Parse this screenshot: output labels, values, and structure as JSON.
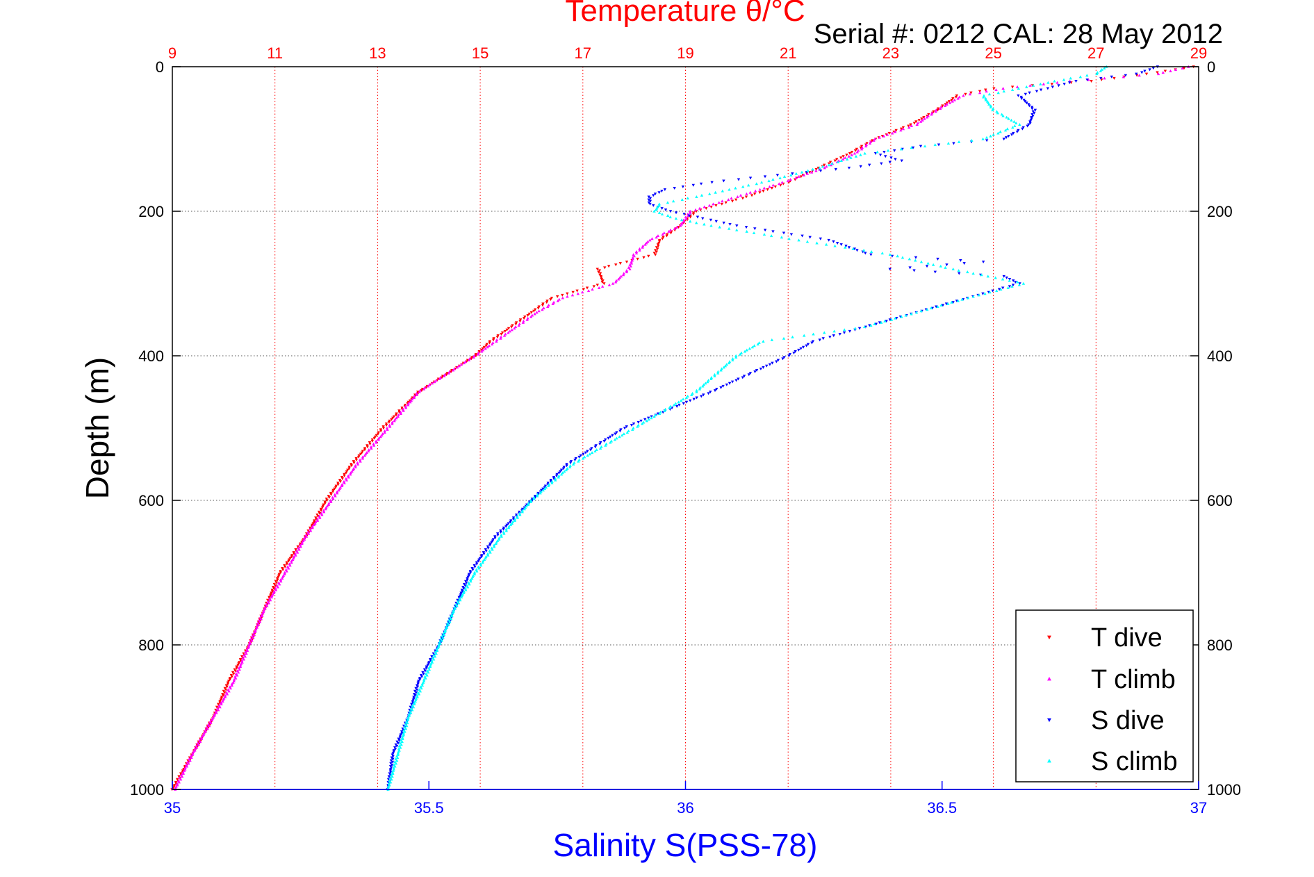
{
  "chart_data": {
    "type": "scatter",
    "top_title": "Temperature θ/°C",
    "serial_text": "Serial #: 0212  CAL: 28 May 2012",
    "ylabel": "Depth (m)",
    "xlabel_bottom": "Salinity S(PSS-78)",
    "y_ticks": [
      "0",
      "200",
      "400",
      "600",
      "800",
      "1000"
    ],
    "ylim": [
      1000,
      0
    ],
    "y_reversed": true,
    "x_temperature": {
      "range": [
        9,
        29
      ],
      "ticks": [
        "9",
        "11",
        "13",
        "15",
        "17",
        "19",
        "21",
        "23",
        "25",
        "27",
        "29"
      ]
    },
    "x_salinity": {
      "range": [
        35,
        37
      ],
      "ticks": [
        "35",
        "35.5",
        "36",
        "36.5",
        "37"
      ]
    },
    "grid": true,
    "legend_position": "bottom-right",
    "colors": {
      "temperature_axis": "#ff0000",
      "salinity_axis": "#0000ff",
      "t_dive": "#ff0000",
      "t_climb": "#ff00ff",
      "s_dive": "#0000ff",
      "s_climb": "#00ffff"
    },
    "series": [
      {
        "name": "T dive",
        "marker": "down-triangle",
        "color": "#ff0000",
        "axis": "temperature",
        "depth": [
          0,
          10,
          20,
          30,
          40,
          60,
          80,
          100,
          120,
          140,
          160,
          180,
          200,
          220,
          240,
          260,
          280,
          300,
          320,
          340,
          360,
          380,
          400,
          450,
          500,
          550,
          600,
          650,
          700,
          750,
          800,
          850,
          900,
          950,
          1000
        ],
        "values": [
          28.9,
          28.0,
          26.9,
          25.0,
          24.3,
          23.9,
          23.4,
          22.7,
          22.2,
          21.6,
          21.0,
          20.2,
          19.2,
          18.9,
          18.5,
          18.4,
          17.3,
          17.4,
          16.4,
          16.0,
          15.6,
          15.2,
          14.9,
          13.8,
          13.1,
          12.5,
          12.0,
          11.6,
          11.1,
          10.8,
          10.5,
          10.1,
          9.8,
          9.4,
          9.0
        ]
      },
      {
        "name": "T climb",
        "marker": "up-triangle",
        "color": "#ff00ff",
        "axis": "temperature",
        "depth": [
          0,
          10,
          20,
          30,
          40,
          60,
          80,
          100,
          120,
          140,
          160,
          180,
          200,
          220,
          240,
          260,
          280,
          300,
          320,
          340,
          360,
          380,
          400,
          450,
          500,
          550,
          600,
          650,
          700,
          750,
          800,
          850,
          900,
          950,
          1000
        ],
        "values": [
          28.8,
          28.2,
          26.5,
          25.2,
          24.4,
          23.9,
          23.5,
          22.7,
          22.3,
          21.7,
          20.9,
          20.0,
          19.1,
          18.9,
          18.3,
          18.0,
          17.9,
          17.6,
          16.6,
          16.1,
          15.7,
          15.3,
          14.9,
          13.8,
          13.2,
          12.6,
          12.1,
          11.6,
          11.2,
          10.8,
          10.5,
          10.2,
          9.8,
          9.4,
          9.05
        ]
      },
      {
        "name": "S dive",
        "marker": "down-triangle",
        "color": "#0000ff",
        "axis": "salinity",
        "depth": [
          0,
          10,
          20,
          40,
          60,
          80,
          100,
          110,
          120,
          130,
          140,
          150,
          160,
          170,
          180,
          190,
          200,
          220,
          240,
          260,
          270,
          280,
          290,
          300,
          320,
          340,
          360,
          380,
          400,
          450,
          500,
          550,
          600,
          650,
          700,
          750,
          800,
          850,
          900,
          950,
          1000
        ],
        "values": [
          36.92,
          36.88,
          36.76,
          36.65,
          36.68,
          36.67,
          36.62,
          36.46,
          36.37,
          36.42,
          36.32,
          36.18,
          36.05,
          35.96,
          35.93,
          35.93,
          35.97,
          36.1,
          36.28,
          36.36,
          36.58,
          36.4,
          36.62,
          36.65,
          36.55,
          36.45,
          36.35,
          36.25,
          36.2,
          36.05,
          35.88,
          35.77,
          35.7,
          35.63,
          35.58,
          35.55,
          35.52,
          35.48,
          35.46,
          35.43,
          35.42
        ]
      },
      {
        "name": "S climb",
        "marker": "up-triangle",
        "color": "#00ffff",
        "axis": "salinity",
        "depth": [
          0,
          10,
          20,
          30,
          40,
          60,
          80,
          100,
          120,
          140,
          160,
          180,
          190,
          200,
          210,
          220,
          240,
          260,
          280,
          300,
          320,
          340,
          360,
          380,
          400,
          450,
          500,
          550,
          600,
          650,
          700,
          750,
          800,
          850,
          900,
          950,
          1000
        ],
        "values": [
          36.82,
          36.8,
          36.72,
          36.65,
          36.58,
          36.6,
          36.65,
          36.58,
          36.35,
          36.26,
          36.15,
          36.02,
          35.95,
          35.94,
          35.98,
          36.05,
          36.22,
          36.4,
          36.52,
          36.66,
          36.55,
          36.45,
          36.35,
          36.15,
          36.1,
          36.02,
          35.9,
          35.78,
          35.7,
          35.64,
          35.59,
          35.55,
          35.52,
          35.49,
          35.46,
          35.44,
          35.42
        ]
      }
    ]
  }
}
